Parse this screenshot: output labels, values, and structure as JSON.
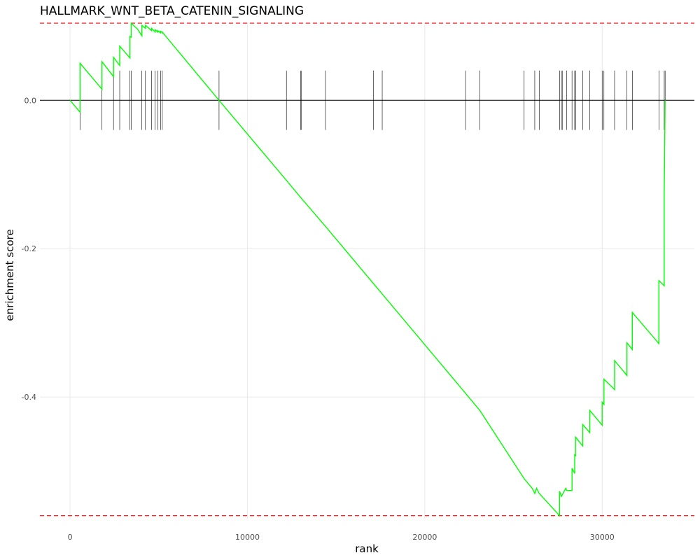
{
  "chart_data": {
    "type": "line",
    "title": "HALLMARK_WNT_BETA_CATENIN_SIGNALING",
    "xlabel": "rank",
    "ylabel": "enrichment score",
    "xlim": [
      -1700,
      35200
    ],
    "ylim": [
      -0.565,
      0.105
    ],
    "x_ticks": [
      0,
      10000,
      20000,
      30000
    ],
    "x_tick_labels": [
      "0",
      "10000",
      "20000",
      "30000"
    ],
    "y_ticks": [
      0.0,
      -0.2,
      -0.4
    ],
    "y_tick_labels": [
      "0.0",
      "-0.2",
      "-0.4"
    ],
    "grid": true,
    "background": "#ffffff",
    "colors": {
      "curve": "#00ff00",
      "reference_lines": "#ff0000",
      "hit_ticks": "#000000",
      "zero_line": "#000000",
      "grid": "#ebebeb"
    },
    "reference_lines": [
      0.104,
      -0.56
    ],
    "hit_tick_half_height": 0.04,
    "hit_ranks": [
      560,
      1800,
      2450,
      2800,
      3380,
      3450,
      4050,
      4250,
      4600,
      4800,
      4950,
      5100,
      5200,
      8400,
      12200,
      13000,
      13050,
      14400,
      17100,
      17600,
      22300,
      23100,
      25600,
      26200,
      26450,
      27600,
      27700,
      27750,
      28000,
      28300,
      28450,
      28500,
      28900,
      29300,
      30000,
      30100,
      30700,
      31400,
      31700,
      33200,
      33500,
      33550
    ],
    "series": [
      {
        "x": [
          0,
          560,
          560,
          1800,
          1800,
          2450,
          2450,
          2800,
          2800,
          3380,
          3380,
          3450,
          3450,
          3800,
          4050,
          4050,
          4250,
          4250,
          4600,
          4600,
          4800,
          4800,
          4950,
          4950,
          5100,
          5100,
          5200,
          5200,
          8400,
          12200,
          13000,
          14400,
          17100,
          17600,
          22300,
          23100,
          25600,
          26050,
          26200,
          26300,
          26450,
          27600,
          27600,
          27700,
          27950,
          28000,
          28300,
          28300,
          28450,
          28450,
          28500,
          28500,
          28900,
          28900,
          29300,
          29300,
          30000,
          30000,
          30100,
          30100,
          30700,
          30700,
          31400,
          31400,
          31700,
          31700,
          33200,
          33200,
          33500,
          33500,
          33550
        ],
        "y": [
          0.0,
          -0.016,
          0.05,
          0.015,
          0.052,
          0.032,
          0.058,
          0.047,
          0.073,
          0.057,
          0.086,
          0.085,
          0.104,
          0.096,
          0.087,
          0.101,
          0.097,
          0.101,
          0.094,
          0.097,
          0.092,
          0.095,
          0.092,
          0.094,
          0.091,
          0.093,
          0.091,
          0.092,
          0.0,
          -0.108,
          -0.131,
          -0.17,
          -0.247,
          -0.261,
          -0.395,
          -0.418,
          -0.51,
          -0.523,
          -0.53,
          -0.523,
          -0.53,
          -0.56,
          -0.527,
          -0.534,
          -0.523,
          -0.526,
          -0.526,
          -0.496,
          -0.503,
          -0.478,
          -0.479,
          -0.454,
          -0.466,
          -0.437,
          -0.448,
          -0.418,
          -0.438,
          -0.407,
          -0.41,
          -0.376,
          -0.39,
          -0.351,
          -0.371,
          -0.327,
          -0.336,
          -0.286,
          -0.328,
          -0.243,
          -0.25,
          -0.126,
          0.0
        ]
      }
    ]
  }
}
